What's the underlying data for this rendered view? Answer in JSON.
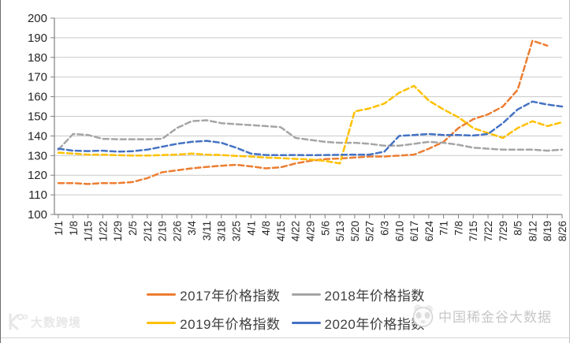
{
  "watermark_left": {
    "text": "大数跨境",
    "icon": "dashu-logo-icon",
    "color": "#e7e7e7"
  },
  "watermark_right": {
    "text": "中国稀金谷大数据",
    "icon": "panda-logo-icon",
    "color": "#c7c7c7"
  },
  "axis_colors": {
    "axis_line": "#808080",
    "gridline": "#c9c9c9",
    "tick_label": "#262626"
  },
  "chart_data": {
    "type": "line",
    "title": "",
    "xlabel": "",
    "ylabel": "",
    "ylim": [
      100,
      200
    ],
    "ytick_step": 10,
    "grid": "horizontal",
    "line_style": "dashed",
    "legend_position": "bottom",
    "categories": [
      "1/1",
      "1/8",
      "1/15",
      "1/22",
      "1/29",
      "2/5",
      "2/12",
      "2/19",
      "2/26",
      "3/4",
      "3/11",
      "3/18",
      "3/25",
      "4/1",
      "4/8",
      "4/15",
      "4/22",
      "4/29",
      "5/6",
      "5/13",
      "5/20",
      "5/27",
      "6/3",
      "6/10",
      "6/17",
      "6/24",
      "7/1",
      "7/8",
      "7/15",
      "7/22",
      "7/29",
      "8/5",
      "8/12",
      "8/19",
      "8/26"
    ],
    "series": [
      {
        "name": "2017年价格指数",
        "color": "#ED7D31",
        "values": [
          116,
          116,
          115.5,
          116,
          116,
          116.5,
          118.5,
          121.5,
          122.5,
          123.5,
          124.2,
          124.8,
          125.3,
          124.5,
          123.5,
          124,
          126,
          127.3,
          128.2,
          128.5,
          129,
          129.5,
          129.5,
          130,
          130.5,
          133.5,
          137,
          144,
          148.5,
          151,
          155,
          163.5,
          188.5,
          186,
          null
        ]
      },
      {
        "name": "2018年价格指数",
        "color": "#A5A5A5",
        "values": [
          133,
          141,
          140.5,
          138.5,
          138.3,
          138.3,
          138.3,
          138.5,
          144,
          147.5,
          148,
          146.5,
          146,
          145.5,
          145,
          144.5,
          139,
          138,
          137,
          136.5,
          136.5,
          136,
          135,
          135,
          136,
          137,
          136.5,
          135.5,
          134,
          133.5,
          133,
          133,
          133,
          132.5,
          133
        ]
      },
      {
        "name": "2019年价格指数",
        "color": "#FFC000",
        "values": [
          131.5,
          131,
          130.5,
          130.5,
          130.2,
          130,
          130,
          130.3,
          130.5,
          131,
          130.5,
          130.3,
          129.8,
          129.5,
          129,
          128.7,
          128.3,
          128,
          127.3,
          126,
          152.5,
          154,
          156.5,
          162,
          165.5,
          158,
          153.5,
          149.5,
          144,
          141.5,
          139,
          144,
          147.5,
          145,
          147
        ]
      },
      {
        "name": "2020年价格指数",
        "color": "#4472C4",
        "values": [
          133.5,
          132.5,
          132.3,
          132.5,
          132,
          132.2,
          133,
          134.5,
          136,
          137,
          137.5,
          136.5,
          134,
          131,
          130.3,
          130.2,
          130.3,
          130.2,
          130.3,
          130.4,
          130.5,
          130.5,
          132,
          140,
          140.5,
          141,
          140.5,
          140.5,
          140.2,
          141,
          146.5,
          153.5,
          157.5,
          156,
          155
        ]
      }
    ]
  }
}
